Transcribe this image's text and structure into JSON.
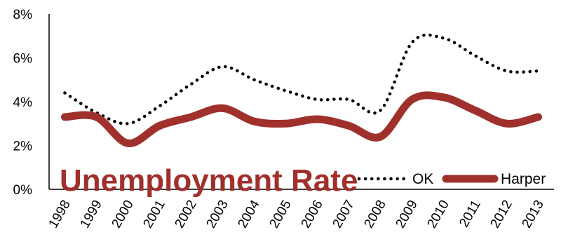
{
  "chart_data": {
    "type": "line",
    "title": "Unemployment Rate",
    "x": [
      "1998",
      "1999",
      "2000",
      "2001",
      "2002",
      "2003",
      "2004",
      "2005",
      "2006",
      "2007",
      "2008",
      "2009",
      "2010",
      "2011",
      "2012",
      "2013"
    ],
    "ylim": [
      0,
      8
    ],
    "yticks": [
      "0%",
      "2%",
      "4%",
      "6%",
      "8%"
    ],
    "grid": false,
    "legend": "bottom-right",
    "series": [
      {
        "name": "OK",
        "color": "#000000",
        "style": "dotted",
        "values": [
          4.4,
          3.5,
          3.0,
          3.8,
          4.8,
          5.6,
          5.0,
          4.5,
          4.1,
          4.1,
          3.6,
          6.7,
          6.9,
          6.1,
          5.4,
          5.4
        ]
      },
      {
        "name": "Harper",
        "color": "#a0302c",
        "style": "solid",
        "values": [
          3.3,
          3.3,
          2.1,
          2.9,
          3.3,
          3.7,
          3.1,
          3.0,
          3.2,
          2.9,
          2.4,
          4.1,
          4.2,
          3.6,
          3.0,
          3.3
        ]
      }
    ]
  }
}
